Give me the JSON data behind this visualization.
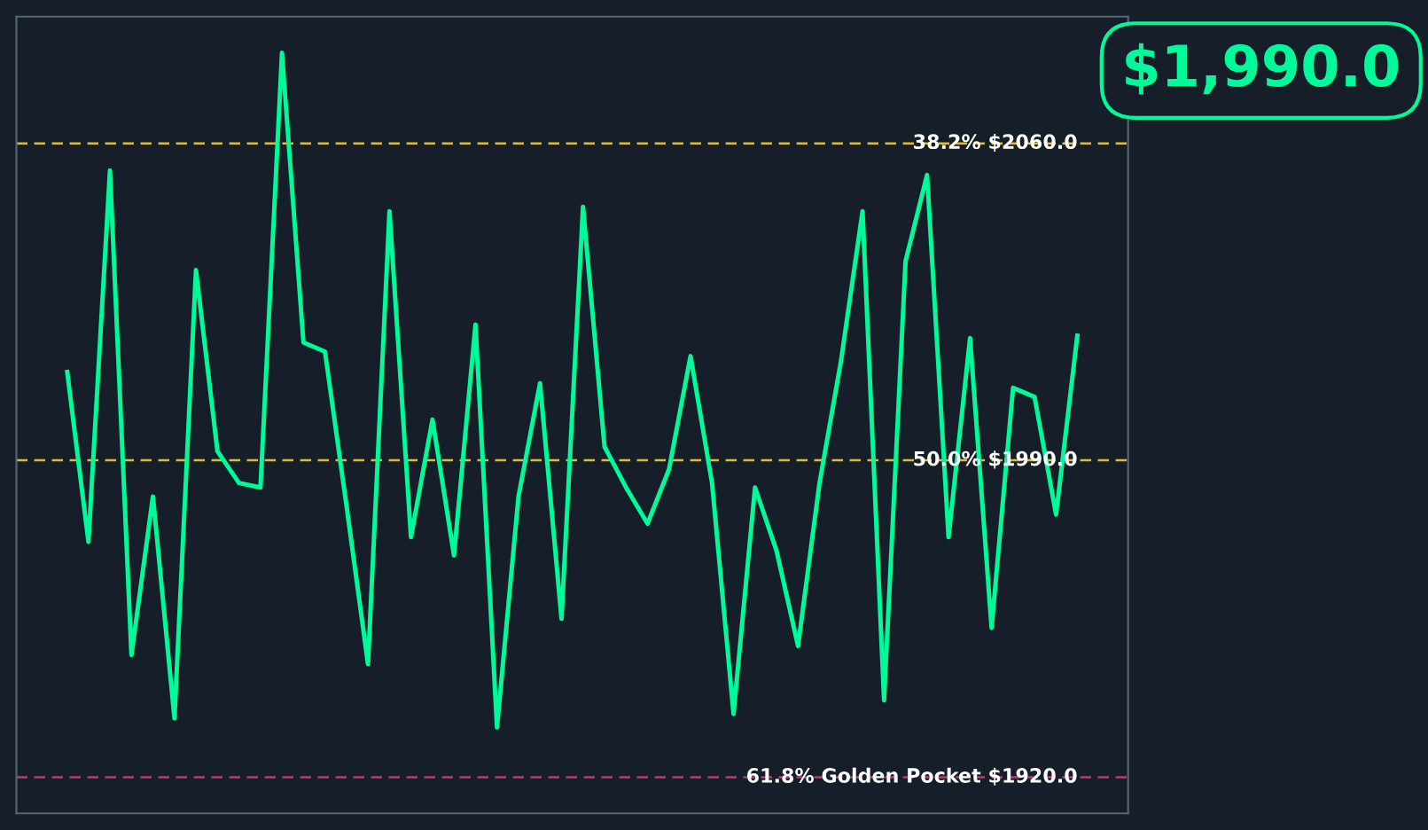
{
  "chart_data": {
    "type": "line",
    "categories": [
      null,
      null,
      null,
      null,
      null,
      null,
      null,
      null,
      null,
      null,
      null,
      null,
      null,
      null,
      null,
      null,
      null,
      null,
      null,
      null,
      null,
      null,
      null,
      null,
      null,
      null,
      null,
      null,
      null,
      null,
      null,
      null,
      null,
      null,
      null,
      null,
      null,
      null,
      null,
      null,
      null,
      null,
      null,
      null,
      null,
      null,
      null,
      null
    ],
    "series": [
      {
        "color": "#00fa9a",
        "values": [
          2010,
          1972,
          2054,
          1947,
          1982,
          1933,
          2032,
          1992,
          1985,
          1984,
          2080,
          2016,
          2014,
          1980,
          1945,
          2045,
          1973,
          1999,
          1969,
          2020,
          1931,
          1982,
          2007,
          1955,
          2046,
          1993,
          1984,
          1976,
          1988,
          2013,
          1985,
          1934,
          1984,
          1970,
          1949,
          1985,
          2012,
          2045,
          1937,
          2034,
          2053,
          1973,
          2017,
          1953,
          2006,
          2004,
          1978,
          2018
        ]
      }
    ],
    "ylim": [
      1912,
      2088
    ],
    "tick_labels": false,
    "grid": false,
    "marker": "none",
    "line_style": "solid",
    "ref_lines": [
      {
        "axis": "y",
        "value": 2060.0,
        "label": "38.2% $2060.0",
        "color": "#d9bc3e",
        "line_style": "dashed"
      },
      {
        "axis": "y",
        "value": 1990.0,
        "label": "50.0% $1990.0",
        "color": "#d9bc3e",
        "line_style": "dashed"
      },
      {
        "axis": "y",
        "value": 1920.0,
        "label": "61.8% Golden Pocket $1920.0",
        "color": "#c8356f",
        "line_style": "dashed"
      }
    ],
    "annotations": [
      "$1,990.0"
    ]
  }
}
